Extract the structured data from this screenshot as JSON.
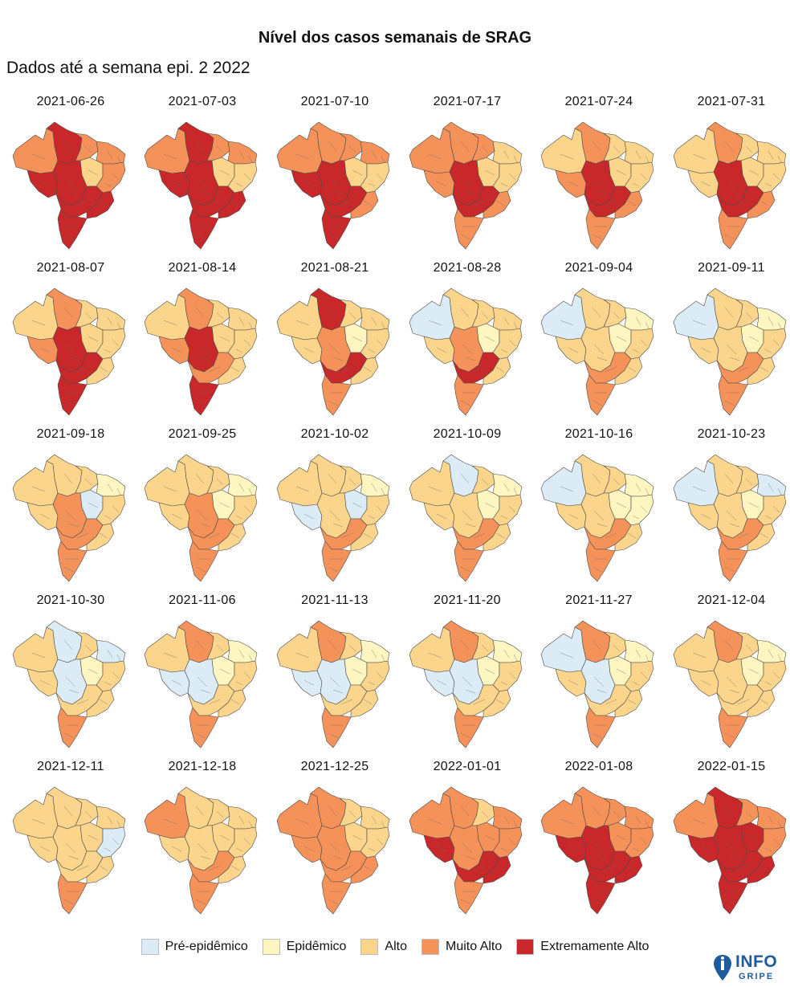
{
  "header": {
    "title": "Nível dos casos semanais de SRAG",
    "subtitle": "Dados até a semana epi. 2 2022"
  },
  "chart_data": {
    "type": "choropleth-small-multiples",
    "title": "Nível dos casos semanais de SRAG",
    "subtitle": "Dados até a semana epi. 2 2022",
    "levels": [
      "Pré-epidêmico",
      "Epidêmico",
      "Alto",
      "Muito Alto",
      "Extremamente Alto"
    ],
    "colors": [
      "#dcecf7",
      "#fef6c0",
      "#fbd58c",
      "#f5925a",
      "#c8282a"
    ],
    "regions": [
      "N-W",
      "N-N",
      "N-E",
      "NE-N",
      "NE-C",
      "NE-S",
      "CW-W",
      "CW-E",
      "SE-W",
      "SE-E",
      "S"
    ],
    "panels": [
      {
        "date": "2021-06-26",
        "levels": [
          3,
          4,
          3,
          3,
          2,
          3,
          4,
          4,
          4,
          4,
          4
        ]
      },
      {
        "date": "2021-07-03",
        "levels": [
          3,
          4,
          3,
          3,
          2,
          2,
          4,
          4,
          4,
          4,
          4
        ]
      },
      {
        "date": "2021-07-10",
        "levels": [
          3,
          3,
          3,
          3,
          2,
          2,
          4,
          4,
          4,
          3,
          4
        ]
      },
      {
        "date": "2021-07-17",
        "levels": [
          3,
          3,
          3,
          2,
          2,
          2,
          3,
          4,
          4,
          3,
          3
        ]
      },
      {
        "date": "2021-07-24",
        "levels": [
          2,
          3,
          2,
          2,
          2,
          2,
          3,
          4,
          4,
          3,
          3
        ]
      },
      {
        "date": "2021-07-31",
        "levels": [
          2,
          3,
          2,
          2,
          2,
          2,
          2,
          4,
          4,
          3,
          3
        ]
      },
      {
        "date": "2021-08-07",
        "levels": [
          2,
          3,
          2,
          2,
          2,
          2,
          3,
          4,
          4,
          2,
          4
        ]
      },
      {
        "date": "2021-08-14",
        "levels": [
          2,
          3,
          2,
          2,
          2,
          2,
          3,
          4,
          3,
          2,
          4
        ]
      },
      {
        "date": "2021-08-21",
        "levels": [
          2,
          4,
          2,
          2,
          1,
          2,
          2,
          3,
          4,
          2,
          3
        ]
      },
      {
        "date": "2021-08-28",
        "levels": [
          0,
          2,
          2,
          2,
          1,
          2,
          2,
          3,
          4,
          2,
          3
        ]
      },
      {
        "date": "2021-09-04",
        "levels": [
          0,
          2,
          2,
          1,
          1,
          2,
          2,
          2,
          3,
          2,
          3
        ]
      },
      {
        "date": "2021-09-11",
        "levels": [
          0,
          2,
          2,
          1,
          1,
          2,
          2,
          2,
          3,
          2,
          3
        ]
      },
      {
        "date": "2021-09-18",
        "levels": [
          2,
          2,
          2,
          1,
          0,
          2,
          2,
          3,
          3,
          2,
          3
        ]
      },
      {
        "date": "2021-09-25",
        "levels": [
          2,
          2,
          2,
          1,
          1,
          2,
          2,
          3,
          3,
          2,
          3
        ]
      },
      {
        "date": "2021-10-02",
        "levels": [
          2,
          2,
          2,
          1,
          0,
          2,
          0,
          2,
          3,
          2,
          3
        ]
      },
      {
        "date": "2021-10-09",
        "levels": [
          2,
          0,
          2,
          1,
          1,
          2,
          2,
          2,
          3,
          2,
          3
        ]
      },
      {
        "date": "2021-10-16",
        "levels": [
          0,
          2,
          2,
          1,
          1,
          1,
          2,
          2,
          3,
          2,
          3
        ]
      },
      {
        "date": "2021-10-23",
        "levels": [
          0,
          2,
          2,
          0,
          1,
          2,
          2,
          2,
          3,
          2,
          3
        ]
      },
      {
        "date": "2021-10-30",
        "levels": [
          2,
          0,
          2,
          0,
          1,
          2,
          2,
          0,
          2,
          2,
          3
        ]
      },
      {
        "date": "2021-11-06",
        "levels": [
          2,
          3,
          2,
          1,
          1,
          2,
          0,
          0,
          2,
          2,
          3
        ]
      },
      {
        "date": "2021-11-13",
        "levels": [
          2,
          3,
          2,
          1,
          1,
          2,
          0,
          0,
          2,
          2,
          3
        ]
      },
      {
        "date": "2021-11-20",
        "levels": [
          2,
          3,
          2,
          1,
          1,
          2,
          0,
          0,
          2,
          2,
          3
        ]
      },
      {
        "date": "2021-11-27",
        "levels": [
          0,
          3,
          2,
          1,
          1,
          2,
          2,
          0,
          2,
          2,
          3
        ]
      },
      {
        "date": "2021-12-04",
        "levels": [
          2,
          3,
          2,
          1,
          1,
          2,
          2,
          2,
          2,
          2,
          3
        ]
      },
      {
        "date": "2021-12-11",
        "levels": [
          2,
          2,
          2,
          2,
          2,
          0,
          2,
          2,
          2,
          2,
          3
        ]
      },
      {
        "date": "2021-12-18",
        "levels": [
          3,
          2,
          2,
          2,
          2,
          2,
          2,
          2,
          3,
          2,
          3
        ]
      },
      {
        "date": "2021-12-25",
        "levels": [
          3,
          3,
          2,
          2,
          2,
          2,
          3,
          3,
          3,
          3,
          3
        ]
      },
      {
        "date": "2022-01-01",
        "levels": [
          3,
          3,
          2,
          3,
          3,
          3,
          4,
          3,
          4,
          4,
          3
        ]
      },
      {
        "date": "2022-01-08",
        "levels": [
          3,
          3,
          3,
          3,
          3,
          3,
          4,
          4,
          4,
          4,
          4
        ]
      },
      {
        "date": "2022-01-15",
        "levels": [
          3,
          4,
          3,
          3,
          4,
          3,
          4,
          4,
          4,
          4,
          4
        ]
      }
    ]
  },
  "logo": {
    "line1": "INFO",
    "line2": "GRIPE",
    "color": "#1f5c9e"
  }
}
